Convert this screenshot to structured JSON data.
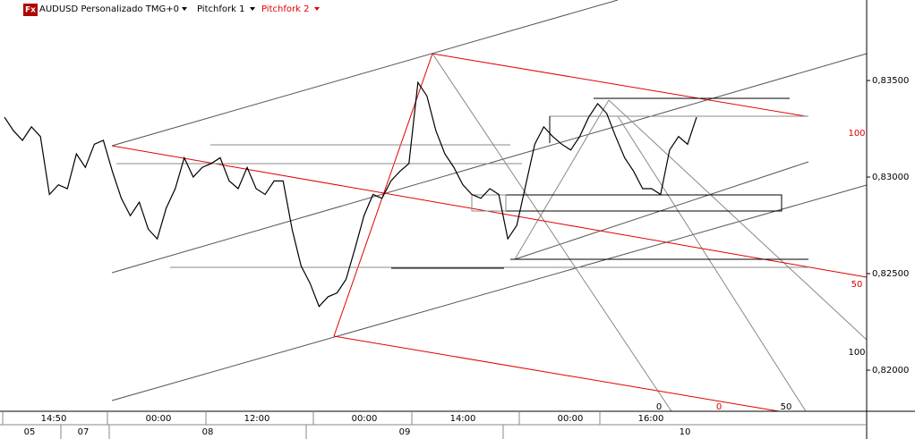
{
  "chart_data": {
    "type": "line",
    "title": "AUDUSD Personalizado TMG+0",
    "icon": "Fx",
    "indicators": [
      {
        "name": "Pitchfork 1",
        "color": "#000000"
      },
      {
        "name": "Pitchfork 2",
        "color": "#e00000"
      }
    ],
    "series": [
      {
        "name": "AUDUSD",
        "color": "#000000",
        "values": [
          0.8331,
          0.8324,
          0.8319,
          0.8326,
          0.8321,
          0.8291,
          0.8296,
          0.8294,
          0.8312,
          0.8305,
          0.8317,
          0.8319,
          0.8303,
          0.8289,
          0.828,
          0.8287,
          0.8273,
          0.8268,
          0.8284,
          0.8294,
          0.831,
          0.83,
          0.8305,
          0.8307,
          0.831,
          0.8298,
          0.8294,
          0.8305,
          0.8294,
          0.8291,
          0.8298,
          0.8298,
          0.8273,
          0.8254,
          0.8245,
          0.8233,
          0.8238,
          0.824,
          0.8247,
          0.8263,
          0.828,
          0.8291,
          0.8289,
          0.8298,
          0.8303,
          0.8307,
          0.8349,
          0.8342,
          0.8324,
          0.8312,
          0.8305,
          0.8296,
          0.8291,
          0.8289,
          0.8294,
          0.8291,
          0.8268,
          0.8275,
          0.8296,
          0.8317,
          0.8326,
          0.8321,
          0.8317,
          0.8314,
          0.8321,
          0.8331,
          0.8338,
          0.8333,
          0.8321,
          0.831,
          0.8303,
          0.8294,
          0.8294,
          0.8291,
          0.8314,
          0.8321,
          0.8317,
          0.8331
        ]
      }
    ],
    "ylim": [
      0.81787,
      0.83917
    ],
    "yticks": [
      {
        "value": 0.82,
        "label": "0,82000"
      },
      {
        "value": 0.825,
        "label": "0,82500"
      },
      {
        "value": 0.83,
        "label": "0,83000"
      },
      {
        "value": 0.835,
        "label": "0,83500"
      }
    ],
    "time_labels": [
      "14:50",
      "00:00",
      "12:00",
      "00:00",
      "14:00",
      "00:00",
      "16:00"
    ],
    "date_labels": [
      "05",
      "07",
      "08",
      "09",
      "10"
    ],
    "level_labels": [
      {
        "text": "100",
        "color": "#e00000"
      },
      {
        "text": "50",
        "color": "#e00000"
      },
      {
        "text": "100",
        "color": "#000000"
      },
      {
        "text": "0",
        "color": "#000000"
      },
      {
        "text": "0",
        "color": "#e00000"
      },
      {
        "text": "50",
        "color": "#000000"
      }
    ]
  }
}
